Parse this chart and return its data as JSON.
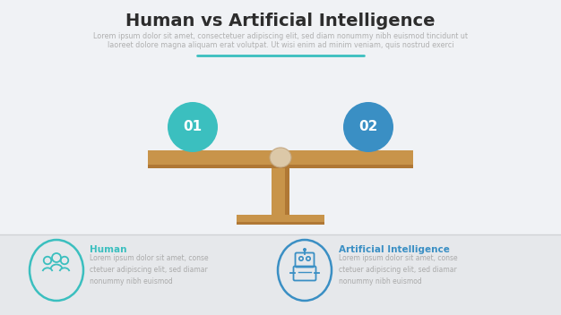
{
  "title": "Human vs Artificial Intelligence",
  "subtitle_line1": "Lorem ipsum dolor sit amet, consectetuer adipiscing elit, sed diam nonummy nibh euismod tincidunt ut",
  "subtitle_line2": "laoreet dolore magna aliquam erat volutpat. Ut wisi enim ad minim veniam, quis nostrud exerci",
  "bg_color": "#f0f2f5",
  "bottom_bg_color": "#e6e8eb",
  "title_color": "#2d2d2d",
  "subtitle_color": "#b0b0b0",
  "divider_color": "#3bbfbf",
  "beam_color": "#c8944a",
  "beam_dark": "#b07835",
  "stand_color": "#c8944a",
  "stand_dark": "#b07835",
  "base_color": "#c8944a",
  "base_dark": "#b07835",
  "pivot_color": "#dcc8a8",
  "pivot_dark": "#c4a882",
  "circle_left_color": "#3bbfbf",
  "circle_right_color": "#3a8fc4",
  "circle_text_color": "#ffffff",
  "label1": "01",
  "label2": "02",
  "human_title": "Human",
  "human_title_color": "#3bbfbf",
  "human_desc": "Lorem ipsum dolor sit amet, conse\nctetuer adipiscing elit, sed diamar\nnonummy nibh euismod",
  "human_desc_color": "#aaaaaa",
  "ai_title": "Artificial Intelligence",
  "ai_title_color": "#3a8fc4",
  "ai_desc": "Lorem ipsum dolor sit amet, conse\nctetuer adipiscing elit, sed diamar\nnonummy nibh euismod",
  "ai_desc_color": "#aaaaaa",
  "human_circle_color": "#3bbfbf",
  "ai_circle_color": "#3a8fc4",
  "sep_line_color": "#d0d2d5"
}
